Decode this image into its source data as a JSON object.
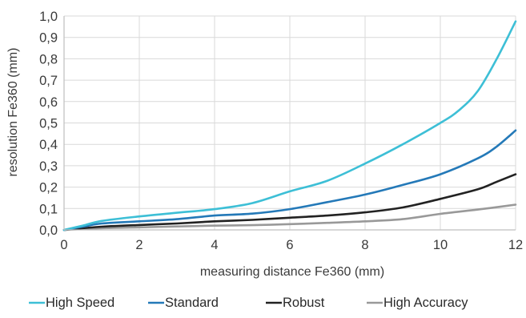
{
  "chart_data": {
    "type": "line",
    "title": "",
    "xlabel": "measuring distance Fe360 (mm)",
    "ylabel": "resolution Fe360 (mm)",
    "xlim": [
      0,
      12
    ],
    "ylim": [
      0,
      1.0
    ],
    "x_ticks": [
      "0",
      "2",
      "4",
      "6",
      "8",
      "10",
      "12"
    ],
    "y_ticks": [
      "0,0",
      "0,1",
      "0,2",
      "0,3",
      "0,4",
      "0,5",
      "0,6",
      "0,7",
      "0,8",
      "0,9",
      "1,0"
    ],
    "grid": true,
    "legend_position": "bottom",
    "series": [
      {
        "name": "High Speed",
        "color": "#3dbfd6",
        "points": [
          [
            0,
            0
          ],
          [
            0.5,
            0.02
          ],
          [
            1,
            0.042
          ],
          [
            2,
            0.063
          ],
          [
            3,
            0.08
          ],
          [
            4,
            0.097
          ],
          [
            5,
            0.125
          ],
          [
            6,
            0.18
          ],
          [
            7,
            0.23
          ],
          [
            8,
            0.31
          ],
          [
            9,
            0.4
          ],
          [
            10,
            0.5
          ],
          [
            10.5,
            0.56
          ],
          [
            11,
            0.65
          ],
          [
            11.5,
            0.8
          ],
          [
            12,
            0.975
          ]
        ]
      },
      {
        "name": "Standard",
        "color": "#2479b8",
        "points": [
          [
            0,
            0
          ],
          [
            0.5,
            0.015
          ],
          [
            1,
            0.03
          ],
          [
            2,
            0.04
          ],
          [
            3,
            0.05
          ],
          [
            4,
            0.067
          ],
          [
            5,
            0.076
          ],
          [
            6,
            0.097
          ],
          [
            7,
            0.13
          ],
          [
            8,
            0.165
          ],
          [
            9,
            0.21
          ],
          [
            10,
            0.26
          ],
          [
            11,
            0.335
          ],
          [
            11.5,
            0.39
          ],
          [
            12,
            0.465
          ]
        ]
      },
      {
        "name": "Robust",
        "color": "#222222",
        "points": [
          [
            0,
            0
          ],
          [
            1,
            0.015
          ],
          [
            2,
            0.023
          ],
          [
            3,
            0.03
          ],
          [
            4,
            0.04
          ],
          [
            5,
            0.047
          ],
          [
            6,
            0.057
          ],
          [
            7,
            0.067
          ],
          [
            8,
            0.082
          ],
          [
            9,
            0.105
          ],
          [
            10,
            0.145
          ],
          [
            11,
            0.19
          ],
          [
            11.5,
            0.225
          ],
          [
            12,
            0.26
          ]
        ]
      },
      {
        "name": "High Accuracy",
        "color": "#999999",
        "points": [
          [
            0,
            0
          ],
          [
            1,
            0.008
          ],
          [
            2,
            0.012
          ],
          [
            3,
            0.016
          ],
          [
            4,
            0.02
          ],
          [
            5,
            0.022
          ],
          [
            6,
            0.027
          ],
          [
            7,
            0.033
          ],
          [
            8,
            0.04
          ],
          [
            9,
            0.05
          ],
          [
            10,
            0.075
          ],
          [
            11,
            0.095
          ],
          [
            12,
            0.118
          ]
        ]
      }
    ]
  }
}
